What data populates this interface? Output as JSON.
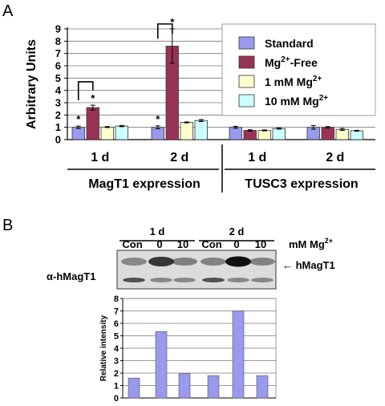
{
  "panels": {
    "a": "A",
    "b": "B"
  },
  "chart_data": [
    {
      "type": "bar",
      "ylabel": "Arbitrary Units",
      "ylim": [
        0,
        9
      ],
      "yticks": [
        0,
        1,
        2,
        3,
        4,
        5,
        6,
        7,
        8,
        9
      ],
      "grid": true,
      "legend_position": "top-right",
      "categories": [
        "1 d",
        "2 d",
        "1 d",
        "2 d"
      ],
      "groups": [
        "MagT1 expression",
        "TUSC3 expression"
      ],
      "series": [
        {
          "name": "Standard",
          "color": "#9999ee",
          "values": [
            1.0,
            1.0,
            1.0,
            1.0
          ],
          "errors": [
            0.1,
            0.12,
            0.08,
            0.15
          ]
        },
        {
          "name": "Mg2+-Free",
          "color": "#993355",
          "values": [
            2.6,
            7.6,
            0.75,
            1.0
          ],
          "errors": [
            0.2,
            1.4,
            0.05,
            0.06
          ]
        },
        {
          "name": "1 mM Mg2+",
          "color": "#ffffcc",
          "values": [
            1.02,
            1.4,
            0.75,
            0.83
          ],
          "errors": [
            0.04,
            0.04,
            0.04,
            0.08
          ]
        },
        {
          "name": "10 mM Mg2+",
          "color": "#ccffff",
          "values": [
            1.1,
            1.55,
            0.9,
            0.72
          ],
          "errors": [
            0.05,
            0.08,
            0.05,
            0.04
          ]
        }
      ],
      "legend_display": [
        {
          "base": "Standard",
          "sup": "",
          "tail": ""
        },
        {
          "base": "Mg",
          "sup": "2+",
          "tail": "-Free"
        },
        {
          "base": "1 mM Mg",
          "sup": "2+",
          "tail": ""
        },
        {
          "base": "10 mM Mg",
          "sup": "2+",
          "tail": ""
        }
      ],
      "significance_marker": "*"
    },
    {
      "type": "bar",
      "ylabel": "Relative intensity",
      "ylim": [
        0,
        8
      ],
      "yticks": [
        0,
        1,
        2,
        3,
        4,
        5,
        6,
        7,
        8
      ],
      "grid": true,
      "color": "#9999ee",
      "values": [
        1.6,
        5.35,
        1.95,
        1.8,
        7.0,
        1.8
      ]
    }
  ],
  "blot": {
    "day_labels": [
      "1 d",
      "2 d"
    ],
    "lane_labels": [
      "Con",
      "0",
      "10",
      "Con",
      "0",
      "10"
    ],
    "unit_label": {
      "base": "mM Mg",
      "sup": "2+"
    },
    "antibody": "α-hMagT1",
    "band_label": "← hMagT1"
  }
}
